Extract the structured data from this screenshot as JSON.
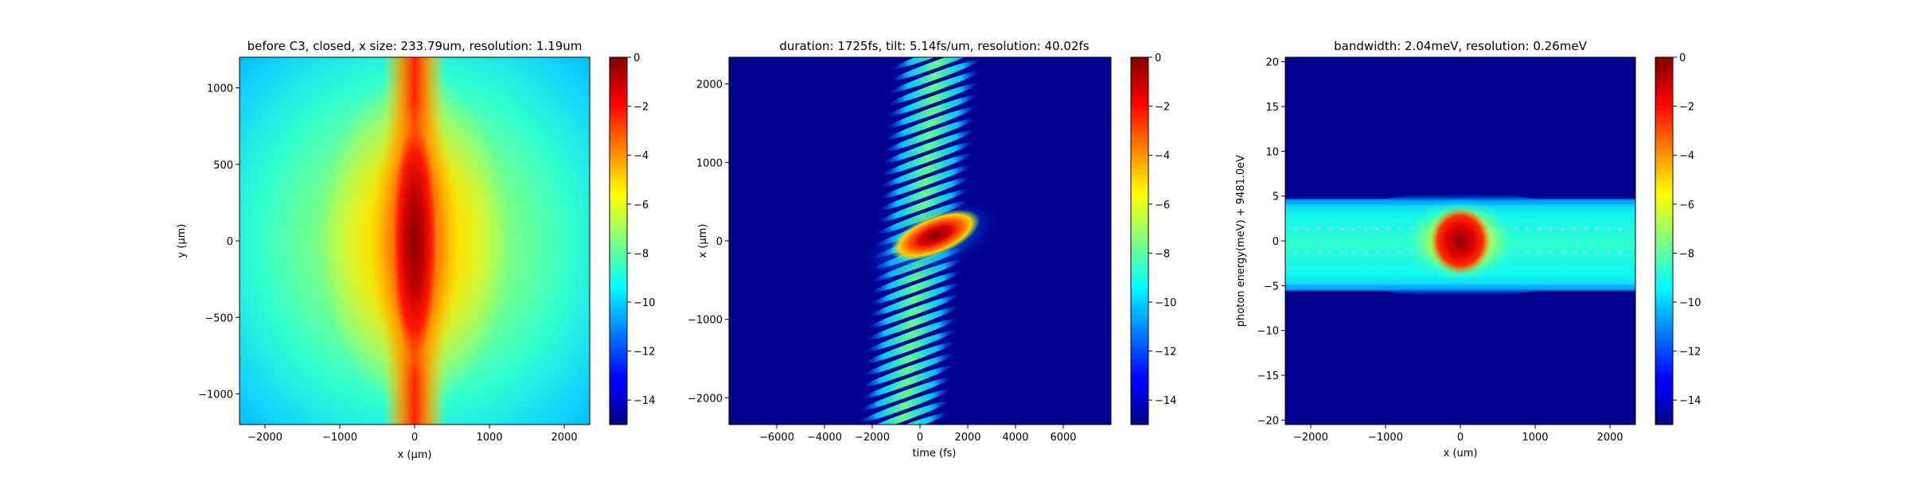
{
  "chart_data": [
    {
      "type": "heatmap",
      "title": "before C3, closed, x size: 233.79um, resolution: 1.19um",
      "xlabel": "x (μm)",
      "ylabel": "y (μm)",
      "xlim": [
        -2340,
        2340
      ],
      "ylim": [
        -1200,
        1200
      ],
      "xticks": [
        -2000,
        -1000,
        0,
        1000,
        2000
      ],
      "xtick_labels": [
        "−2000",
        "−1000",
        "0",
        "1000",
        "2000"
      ],
      "yticks": [
        -1000,
        -500,
        0,
        500,
        1000
      ],
      "ytick_labels": [
        "−1000",
        "−500",
        "0",
        "500",
        "1000"
      ],
      "colorbar": {
        "range": [
          -15,
          0
        ],
        "ticks": [
          0,
          -2,
          -4,
          -6,
          -8,
          -10,
          -12,
          -14
        ],
        "tick_labels": [
          "0",
          "−2",
          "−4",
          "−6",
          "−8",
          "−10",
          "−12",
          "−14"
        ],
        "colormap": "jet"
      }
    },
    {
      "type": "heatmap",
      "title": "duration: 1725fs, tilt: 5.14fs/um, resolution: 40.02fs",
      "xlabel": "time (fs)",
      "ylabel": "x (μm)",
      "xlim": [
        -8000,
        8000
      ],
      "ylim": [
        -2340,
        2340
      ],
      "xticks": [
        -6000,
        -4000,
        -2000,
        0,
        2000,
        4000,
        6000
      ],
      "xtick_labels": [
        "−6000",
        "−4000",
        "−2000",
        "0",
        "2000",
        "4000",
        "6000"
      ],
      "yticks": [
        -2000,
        -1000,
        0,
        1000,
        2000
      ],
      "ytick_labels": [
        "−2000",
        "−1000",
        "0",
        "1000",
        "2000"
      ],
      "colorbar": {
        "range": [
          -15,
          0
        ],
        "ticks": [
          0,
          -2,
          -4,
          -6,
          -8,
          -10,
          -12,
          -14
        ],
        "tick_labels": [
          "0",
          "−2",
          "−4",
          "−6",
          "−8",
          "−10",
          "−12",
          "−14"
        ],
        "colormap": "jet"
      }
    },
    {
      "type": "heatmap",
      "title": "bandwidth: 2.04meV, resolution: 0.26meV",
      "xlabel": "x (um)",
      "ylabel": "photon energy(meV) + 9481.0eV",
      "xlim": [
        -2340,
        2340
      ],
      "ylim": [
        -20.5,
        20.5
      ],
      "xticks": [
        -2000,
        -1000,
        0,
        1000,
        2000
      ],
      "xtick_labels": [
        "−2000",
        "−1000",
        "0",
        "1000",
        "2000"
      ],
      "yticks": [
        -20,
        -15,
        -10,
        -5,
        0,
        5,
        10,
        15,
        20
      ],
      "ytick_labels": [
        "−20",
        "−15",
        "−10",
        "−5",
        "0",
        "5",
        "10",
        "15",
        "20"
      ],
      "colorbar": {
        "range": [
          -15,
          0
        ],
        "ticks": [
          0,
          -2,
          -4,
          -6,
          -8,
          -10,
          -12,
          -14
        ],
        "tick_labels": [
          "0",
          "−2",
          "−4",
          "−6",
          "−8",
          "−10",
          "−12",
          "−14"
        ],
        "colormap": "jet"
      }
    }
  ]
}
